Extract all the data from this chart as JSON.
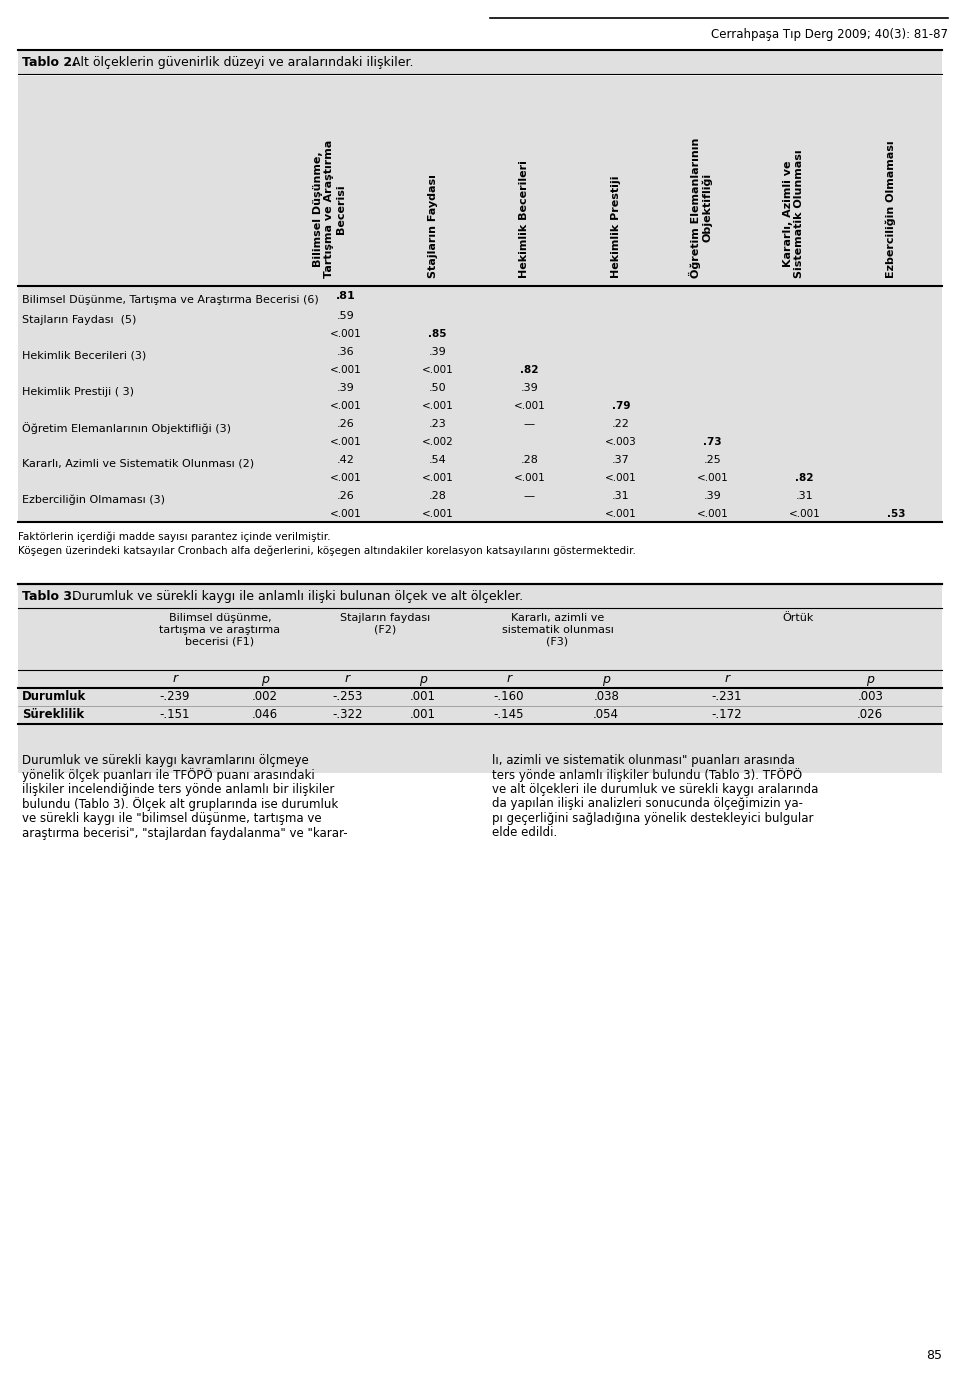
{
  "page_header": "Cerrahpaşa Tıp Derg 2009; 40(3): 81-87",
  "tablo2_title_bold": "Tablo 2.",
  "tablo2_title_rest": " Alt ölçeklerin güvenirlik düzeyi ve aralarındaki ilişkiler.",
  "col_headers": [
    "Bilimsel Düşünme,\nTartışma ve Araştırma\nBecerisi",
    "Stajların Faydası",
    "Hekimlik Becerileri",
    "Hekimlik Prestiji",
    "Öğretim Elemanlarının\nObjektifliği",
    "Kararlı, Azimli ve\nSistematik Olunması",
    "Ezberciliğin Olmaması"
  ],
  "table2_data": [
    [
      "Bilimsel Düşünme, Tartışma ve Araştırma Becerisi (6)",
      ".81",
      "",
      "",
      "",
      "",
      "",
      "",
      "label"
    ],
    [
      "Stajların Faydası  (5)",
      ".59",
      "",
      "",
      "",
      "",
      "",
      "",
      "label"
    ],
    [
      "",
      "<.001",
      ".85",
      "",
      "",
      "",
      "",
      "",
      "pval"
    ],
    [
      "Hekimlik Becerileri (3)",
      ".36",
      ".39",
      "",
      "",
      "",
      "",
      "",
      "label"
    ],
    [
      "",
      "<.001",
      "<.001",
      ".82",
      "",
      "",
      "",
      "",
      "pval"
    ],
    [
      "Hekimlik Prestiji ( 3)",
      ".39",
      ".50",
      ".39",
      "",
      "",
      "",
      "",
      "label"
    ],
    [
      "",
      "<.001",
      "<.001",
      "<.001",
      ".79",
      "",
      "",
      "",
      "pval"
    ],
    [
      "Öğretim Elemanlarının Objektifliği (3)",
      ".26",
      ".23",
      "—",
      ".22",
      "",
      "",
      "",
      "label"
    ],
    [
      "",
      "<.001",
      "<.002",
      "",
      "<.003",
      ".73",
      "",
      "",
      "pval"
    ],
    [
      "Kararlı, Azimli ve Sistematik Olunması (2)",
      ".42",
      ".54",
      ".28",
      ".37",
      ".25",
      "",
      "",
      "label"
    ],
    [
      "",
      "<.001",
      "<.001",
      "<.001",
      "<.001",
      "<.001",
      ".82",
      "",
      "pval"
    ],
    [
      "Ezberciliğin Olmaması (3)",
      ".26",
      ".28",
      "—",
      ".31",
      ".39",
      ".31",
      "",
      "label"
    ],
    [
      "",
      "<.001",
      "<.001",
      "",
      "<.001",
      "<.001",
      "<.001",
      ".53",
      "pval"
    ]
  ],
  "diag_map": {
    "0": 0,
    "2": 1,
    "4": 2,
    "6": 3,
    "8": 4,
    "10": 5,
    "12": 6
  },
  "footnote1": "Faktörlerin içerdiği madde sayısı parantez içinde verilmiştir.",
  "footnote2": "Köşegen üzerindeki katsayılar Cronbach alfa değerlerini, köşegen altındakiler korelasyon katsayılarını göstermektedir.",
  "tablo3_title_bold": "Tablo 3.",
  "tablo3_title_rest": " Durumluk ve sürekli kaygı ile anlamlı ilişki bulunan ölçek ve alt ölçekler.",
  "t3_col_groups": [
    "Bilimsel düşünme,\ntartışma ve araştırma\nbecerisi (F1)",
    "Stajların faydası\n(F2)",
    "Kararlı, azimli ve\nsistematik olunması\n(F3)",
    "Örtük"
  ],
  "t3_rows": [
    [
      "Durumluk",
      "-.239",
      ".002",
      "-.253",
      ".001",
      "-.160",
      ".038",
      "-.231",
      ".003"
    ],
    [
      "Süreklilik",
      "-.151",
      ".046",
      "-.322",
      ".001",
      "-.145",
      ".054",
      "-.172",
      ".026"
    ]
  ],
  "left_lines": [
    "Durumluk ve sürekli kaygı kavramlarını ölçmeye",
    "yönelik ölçek puanları ile TFÖPÖ puanı arasındaki",
    "ilişkiler incelendiğinde ters yönde anlamlı bir ilişkiler",
    "bulundu (Tablo 3). Ölçek alt gruplarında ise durumluk",
    "ve sürekli kaygı ile \"bilimsel düşünme, tartışma ve",
    "araştırma becerisi\", \"stajlardan faydalanma\" ve \"karar-"
  ],
  "right_lines": [
    "lı, azimli ve sistematik olunması\" puanları arasında",
    "ters yönde anlamlı ilişkiler bulundu (Tablo 3). TFÖPÖ",
    "ve alt ölçekleri ile durumluk ve sürekli kaygı aralarında",
    "da yapılan ilişki analizleri sonucunda ölçeğimizin ya-",
    "pı geçerliğini sağladığına yönelik destekleyici bulgular",
    "elde edildi."
  ],
  "page_number": "85",
  "bg_color": "#e0e0e0",
  "white_bg": "#ffffff"
}
